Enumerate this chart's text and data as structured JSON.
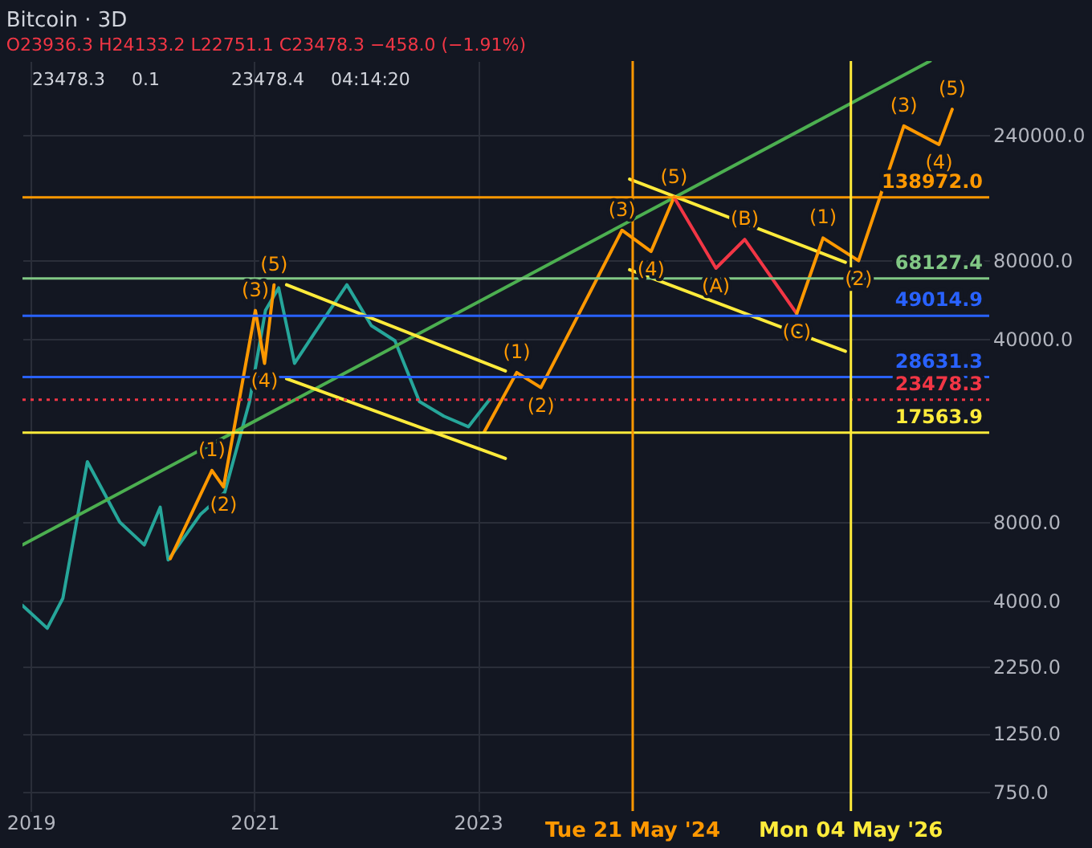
{
  "chart_data": {
    "type": "line",
    "title": "Bitcoin · 3D",
    "subtitle": "O23936.3 H24133.2 L22751.1 C23478.3 −458.0 (−1.91%)",
    "log": "y",
    "grid": true,
    "xlim": [
      "2018-12-05",
      "2027-07-30"
    ],
    "xticks": [
      {
        "value": "2019-01-01",
        "label": "2019"
      },
      {
        "value": "2021-01-01",
        "label": "2021"
      },
      {
        "value": "2023-01-01",
        "label": "2023"
      }
    ],
    "ylim": [
      632,
      460000
    ],
    "yticks": [
      {
        "value": 750,
        "label": "750.0"
      },
      {
        "value": 1250,
        "label": "1250.0"
      },
      {
        "value": 2250,
        "label": "2250.0"
      },
      {
        "value": 4000,
        "label": "4000.0"
      },
      {
        "value": 8000,
        "label": "8000.0"
      },
      {
        "value": 40000,
        "label": "40000.0"
      },
      {
        "value": 80000,
        "label": "80000.0"
      },
      {
        "value": 240000,
        "label": "240000.0"
      }
    ],
    "series": [
      {
        "color": "#26a69a",
        "x": [
          "2018-12-05",
          "2019-02-24",
          "2019-04-16",
          "2019-07-05",
          "2019-10-19",
          "2020-01-07",
          "2020-02-28",
          "2020-03-25",
          "2020-07-08",
          "2020-09-26",
          "2020-12-16",
          "2021-02-06",
          "2021-03-21",
          "2021-05-12",
          "2021-07-16",
          "2021-10-30",
          "2022-01-18",
          "2022-04-05",
          "2022-06-24",
          "2022-09-12",
          "2022-12-01",
          "2023-02-08"
        ],
        "values": [
          3850,
          3150,
          4100,
          13600,
          8000,
          6550,
          9120,
          5740,
          8550,
          10400,
          23100,
          51400,
          62700,
          32300,
          42100,
          64400,
          45000,
          39400,
          23100,
          20300,
          18500,
          23478.3
        ]
      },
      {
        "color": "#4caf50",
        "x": [
          "2018-12-05",
          "2027-01-18"
        ],
        "values": [
          6550,
          460000
        ]
      },
      {
        "color": "#ffeb3b",
        "x": [
          "2021-04-16",
          "2023-04-01"
        ],
        "values": [
          64400,
          30200
        ]
      },
      {
        "color": "#ffeb3b",
        "x": [
          "2021-04-16",
          "2023-04-01"
        ],
        "values": [
          28200,
          14000
        ]
      },
      {
        "color": "#ffeb3b",
        "x": [
          "2024-05-11",
          "2026-04-16"
        ],
        "values": [
          163000,
          78500
        ]
      },
      {
        "color": "#ffeb3b",
        "x": [
          "2024-05-11",
          "2026-04-16"
        ],
        "values": [
          73500,
          35900
        ]
      },
      {
        "color": "#ff9800",
        "x": [
          "2020-04-01",
          "2020-08-15",
          "2020-09-22",
          "2021-01-04",
          "2021-02-03",
          "2021-03-06"
        ],
        "values": [
          5810,
          12600,
          10900,
          51400,
          32300,
          64400
        ]
      },
      {
        "color": "#ff9800",
        "x": [
          "2023-01-22",
          "2023-05-08",
          "2023-07-26",
          "2024-04-16",
          "2024-07-20",
          "2024-10-03"
        ],
        "values": [
          17700,
          29800,
          26100,
          104000,
          86300,
          139000
        ]
      },
      {
        "color": "#f23645",
        "x": [
          "2024-10-03",
          "2025-02-17",
          "2025-05-22",
          "2025-11-08"
        ],
        "values": [
          139000,
          74500,
          95900,
          50000
        ]
      },
      {
        "color": "#ff9800",
        "x": [
          "2025-11-08",
          "2026-02-02",
          "2026-05-29",
          "2026-10-24",
          "2027-02-16",
          "2027-03-31"
        ],
        "values": [
          50000,
          97200,
          79600,
          260000,
          221000,
          301000
        ]
      }
    ],
    "ref_lines": [
      {
        "axis": "y",
        "value": 138972,
        "label": "138972.0",
        "color": "#ff9800"
      },
      {
        "axis": "y",
        "value": 68127.4,
        "label": "68127.4",
        "color": "#81c784"
      },
      {
        "axis": "y",
        "value": 49014.9,
        "label": "49014.9",
        "color": "#2962ff"
      },
      {
        "axis": "y",
        "value": 28631.3,
        "label": "28631.3",
        "color": "#2962ff"
      },
      {
        "axis": "y",
        "value": 23478.3,
        "label": "23478.3",
        "color": "#f23645",
        "line_style": "dotted"
      },
      {
        "axis": "y",
        "value": 17563.9,
        "label": "17563.9",
        "color": "#ffeb3b"
      },
      {
        "axis": "x",
        "value": "2024-05-21",
        "label": "Tue 21 May '24",
        "color": "#ff9800"
      },
      {
        "axis": "x",
        "value": "2026-05-04",
        "label": "Mon 04 May '26",
        "color": "#ffeb3b"
      }
    ],
    "annotations": [
      "23478.3",
      "0.1",
      "23478.4",
      "04:14:20",
      {
        "text": "(5)",
        "x": "2021-03-06",
        "y": 64400
      },
      {
        "text": "(3)",
        "x": "2021-01-04",
        "y": 51400
      },
      {
        "text": "(4)",
        "x": "2021-02-03",
        "y": 32300
      },
      {
        "text": "(1)",
        "x": "2020-08-15",
        "y": 12600
      },
      {
        "text": "(2)",
        "x": "2020-09-22",
        "y": 10900
      },
      {
        "text": "(1)",
        "x": "2023-05-08",
        "y": 29800
      },
      {
        "text": "(2)",
        "x": "2023-07-26",
        "y": 26100
      },
      {
        "text": "(3)",
        "x": "2024-04-16",
        "y": 104000
      },
      {
        "text": "(4)",
        "x": "2024-07-20",
        "y": 86300
      },
      {
        "text": "(5)",
        "x": "2024-10-03",
        "y": 139000
      },
      {
        "text": "(A)",
        "x": "2025-02-17",
        "y": 74500
      },
      {
        "text": "(B)",
        "x": "2025-05-22",
        "y": 95900
      },
      {
        "text": "(C)",
        "x": "2025-11-08",
        "y": 50000
      },
      {
        "text": "(1)",
        "x": "2026-02-02",
        "y": 97200
      },
      {
        "text": "(2)",
        "x": "2026-05-29",
        "y": 79600
      },
      {
        "text": "(3)",
        "x": "2026-10-24",
        "y": 260000
      },
      {
        "text": "(4)",
        "x": "2027-02-16",
        "y": 221000
      },
      {
        "text": "(5)",
        "x": "2027-03-31",
        "y": 301000
      }
    ]
  }
}
